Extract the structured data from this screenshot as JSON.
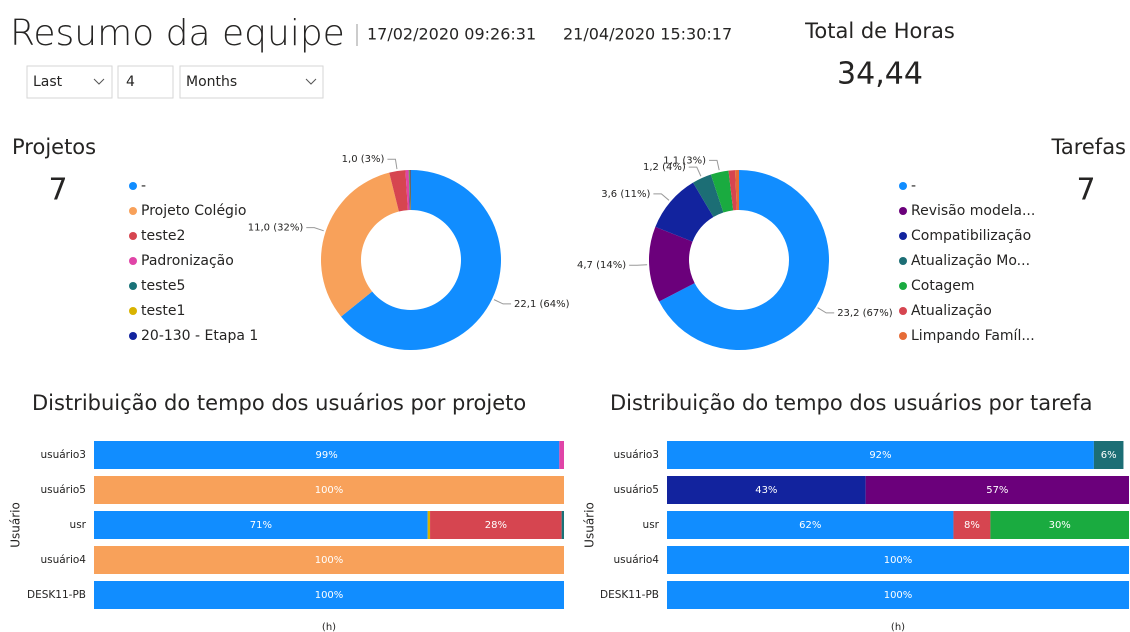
{
  "header": {
    "title": "Resumo da equipe",
    "date_start": "17/02/2020 09:26:31",
    "date_end": "21/04/2020 15:30:17",
    "filters": [
      "Last",
      "4",
      "Months"
    ]
  },
  "cards": [
    {
      "label": "Total de Horas",
      "value": "34,44"
    },
    {
      "label": "Projetos",
      "value": 7
    },
    {
      "label": "Tarefas",
      "value": 7
    }
  ],
  "chart_data": [
    {
      "type": "donut",
      "categories": [
        "-",
        "Projeto Colégio",
        "teste2",
        "Padronização",
        "teste5",
        "teste1",
        "20-130 - Etapa 1"
      ],
      "values": [
        22.1,
        11.0,
        1.0,
        0.2,
        0.05,
        0.05,
        0.04
      ],
      "value_labels": [
        "22,1 (64%)",
        "11,0 (32%)",
        "1,0 (3%)",
        null,
        null,
        null,
        null
      ],
      "colors": [
        "#118DFF",
        "#F8A15A",
        "#D64550",
        "#E044A7",
        "#197278",
        "#D9B300",
        "#12239E"
      ]
    },
    {
      "type": "donut",
      "categories": [
        "-",
        "Revisão modela...",
        "Compatibilização",
        "Atualização Mo...",
        "Cotagem",
        "Atualização",
        "Limpando Famíl..."
      ],
      "values": [
        23.2,
        4.7,
        3.6,
        1.2,
        1.1,
        0.4,
        0.24
      ],
      "value_labels": [
        "23,2 (67%)",
        "4,7 (14%)",
        "3,6 (11%)",
        "1,2 (4%)",
        "1,1 (3%)",
        null,
        null
      ],
      "colors": [
        "#118DFF",
        "#6B007B",
        "#12239E",
        "#1C6E75",
        "#1AAB40",
        "#D64550",
        "#E66C37"
      ]
    },
    {
      "type": "stacked_bar_horizontal",
      "title": "Distribuição do tempo dos usuários por projeto",
      "ylabel": "Usuário",
      "xlabel": "(h)",
      "categories": [
        "usuário3",
        "usuário5",
        "usr",
        "usuário4",
        "DESK11-PB"
      ],
      "xlim": [
        0,
        100
      ],
      "series": [
        {
          "color": "#118DFF",
          "values": [
            99,
            null,
            71,
            null,
            100
          ],
          "value_labels": [
            "99%",
            null,
            "71%",
            null,
            "100%"
          ]
        },
        {
          "color": "#F8A15A",
          "values": [
            null,
            100,
            null,
            100,
            null
          ],
          "value_labels": [
            null,
            "100%",
            null,
            "100%",
            null
          ]
        },
        {
          "color": "#D9B300",
          "values": [
            null,
            null,
            0.5,
            null,
            null
          ],
          "value_labels": [
            null,
            null,
            null,
            null,
            null
          ]
        },
        {
          "color": "#D64550",
          "values": [
            null,
            null,
            28,
            null,
            null
          ],
          "value_labels": [
            null,
            null,
            "28%",
            null,
            null
          ]
        },
        {
          "color": "#E044A7",
          "values": [
            1,
            null,
            null,
            null,
            null
          ],
          "value_labels": [
            null,
            null,
            null,
            null,
            null
          ]
        },
        {
          "color": "#197278",
          "values": [
            null,
            null,
            0.5,
            null,
            null
          ],
          "value_labels": [
            null,
            null,
            null,
            null,
            null
          ]
        }
      ]
    },
    {
      "type": "stacked_bar_horizontal",
      "title": "Distribuição do tempo dos usuários por tarefa",
      "ylabel": "Usuário",
      "xlabel": "(h)",
      "categories": [
        "usuário3",
        "usuário5",
        "usr",
        "usuário4",
        "DESK11-PB"
      ],
      "xlim": [
        0,
        100
      ],
      "series": [
        {
          "color": "#118DFF",
          "values": [
            92.4,
            null,
            62,
            100,
            100
          ],
          "value_labels": [
            "92%",
            null,
            "62%",
            "100%",
            "100%"
          ]
        },
        {
          "color": "#12239E",
          "values": [
            null,
            43,
            null,
            null,
            null
          ],
          "value_labels": [
            null,
            "43%",
            null,
            null,
            null
          ]
        },
        {
          "color": "#6B007B",
          "values": [
            null,
            57,
            null,
            null,
            null
          ],
          "value_labels": [
            null,
            "57%",
            null,
            null,
            null
          ]
        },
        {
          "color": "#D64550",
          "values": [
            null,
            null,
            8,
            null,
            null
          ],
          "value_labels": [
            null,
            null,
            "8%",
            null,
            null
          ]
        },
        {
          "color": "#1AAB40",
          "values": [
            null,
            null,
            30,
            null,
            null
          ],
          "value_labels": [
            null,
            null,
            "30%",
            null,
            null
          ]
        },
        {
          "color": "#1C6E75",
          "values": [
            6.4,
            null,
            null,
            null,
            null
          ],
          "value_labels": [
            "6%",
            null,
            null,
            null,
            null
          ]
        }
      ]
    }
  ]
}
